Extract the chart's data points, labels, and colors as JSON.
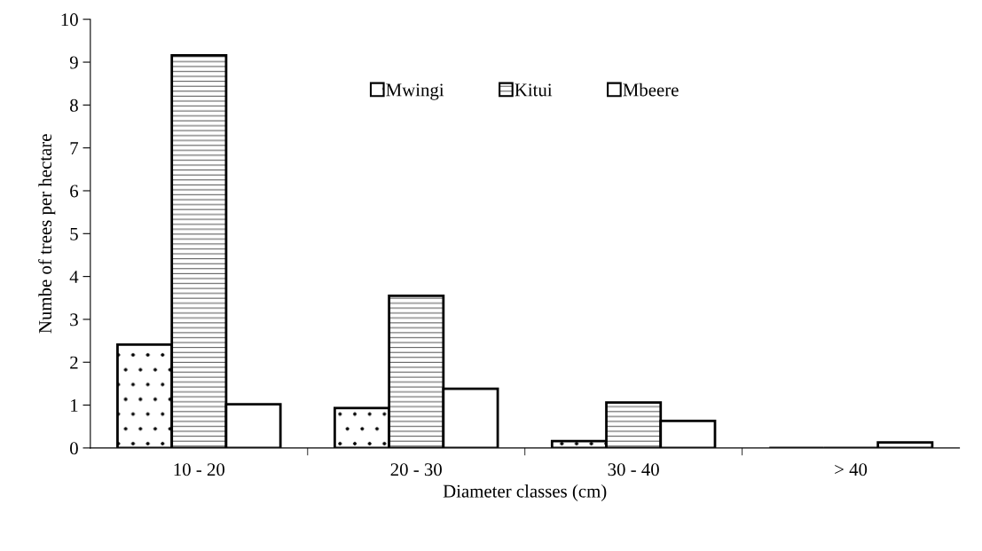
{
  "chart_data": {
    "type": "bar",
    "xlabel": "Diameter classes (cm)",
    "ylabel": "Numbe of trees per hectare",
    "categories": [
      "10 - 20",
      "20 - 30",
      "30 - 40",
      "> 40"
    ],
    "series": [
      {
        "name": "Mwingi",
        "color": "#000000",
        "values": [
          2.41,
          0.93,
          0.16,
          0
        ]
      },
      {
        "name": "Kitui",
        "color": "#000000",
        "values": [
          9.16,
          3.55,
          1.06,
          0
        ]
      },
      {
        "name": "Mbeere",
        "color": "#ffffff",
        "values": [
          1.02,
          1.38,
          0.63,
          0.13
        ]
      }
    ],
    "ylim": [
      0,
      10
    ],
    "yticks": [
      0,
      1,
      2,
      3,
      4,
      5,
      6,
      7,
      8,
      9,
      10
    ],
    "grid": false,
    "legend": "top"
  }
}
